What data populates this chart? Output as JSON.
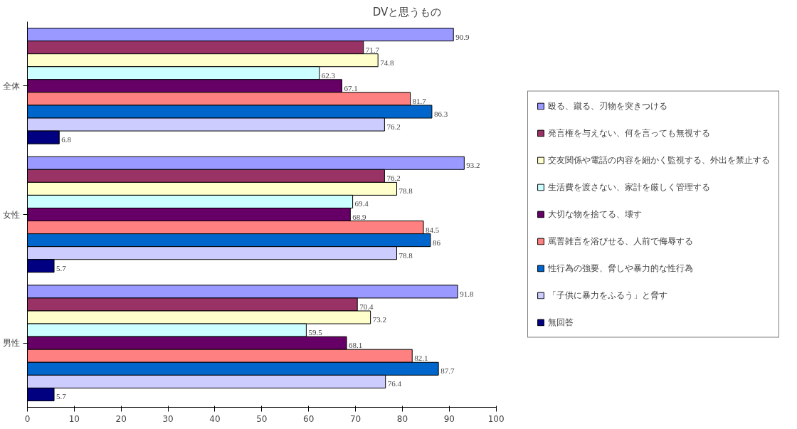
{
  "chart_data": {
    "type": "bar",
    "orientation": "horizontal",
    "title": "DVと思うもの",
    "categories": [
      "全体",
      "女性",
      "男性"
    ],
    "series": [
      {
        "name": "殴る、蹴る、刃物を突きつける",
        "color": "#9999ff",
        "values": [
          90.9,
          93.2,
          91.8
        ]
      },
      {
        "name": "発言権を与えない、何を言っても無視する",
        "color": "#993366",
        "values": [
          71.7,
          76.2,
          70.4
        ]
      },
      {
        "name": "交友関係や電話の内容を細かく監視する、外出を禁止する",
        "color": "#ffffcc",
        "values": [
          74.8,
          78.8,
          73.2
        ]
      },
      {
        "name": "生活費を渡さない、家計を厳しく管理する",
        "color": "#ccffff",
        "values": [
          62.3,
          69.4,
          59.5
        ]
      },
      {
        "name": "大切な物を捨てる、壊す",
        "color": "#660066",
        "values": [
          67.1,
          68.9,
          68.1
        ]
      },
      {
        "name": "罵詈雑言を浴びせる、人前で侮辱する",
        "color": "#ff8080",
        "values": [
          81.7,
          84.5,
          82.1
        ]
      },
      {
        "name": "性行為の強要、脅しや暴力的な性行為",
        "color": "#0066cc",
        "values": [
          86.3,
          86,
          87.7
        ]
      },
      {
        "name": "「子供に暴力をふるう」と脅す",
        "color": "#ccccff",
        "values": [
          76.2,
          78.8,
          76.4
        ]
      },
      {
        "name": "無回答",
        "color": "#000080",
        "values": [
          6.8,
          5.7,
          5.7
        ]
      }
    ],
    "xlim": [
      0,
      100
    ],
    "xticks": [
      0,
      10,
      20,
      30,
      40,
      50,
      60,
      70,
      80,
      90,
      100
    ],
    "grid": false,
    "legend": "right",
    "data_labels": true
  }
}
